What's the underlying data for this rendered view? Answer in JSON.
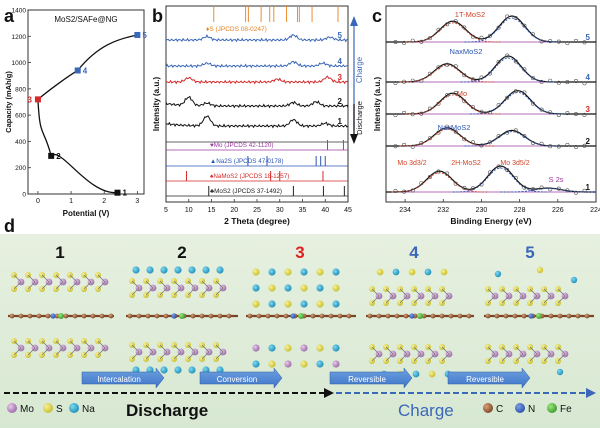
{
  "panels": {
    "a": {
      "letter": "a",
      "title": "MoS2/SAFe@NG",
      "xlabel": "Potential (V)",
      "ylabel": "Capacity (mAh/g)",
      "xticks": [
        "0",
        "1",
        "2",
        "3"
      ],
      "yticks": [
        "0",
        "200",
        "400",
        "600",
        "800",
        "1000",
        "1200",
        "1400"
      ],
      "point_labels": [
        "1",
        "2",
        "3",
        "4",
        "5"
      ]
    },
    "b": {
      "letter": "b",
      "xlabel": "2 Theta (degree)",
      "ylabel": "Intensity (a.u.)",
      "xticks": [
        "5",
        "10",
        "15",
        "20",
        "25",
        "30",
        "35",
        "40",
        "45"
      ],
      "curve_labels": [
        "5",
        "4",
        "3",
        "2",
        "1"
      ],
      "side_labels": {
        "charge": "Charge",
        "discharge": "Discharge"
      },
      "references": [
        {
          "label": "S (JPCDS 08-0247)",
          "color": "#e8821e",
          "marker": "♦"
        },
        {
          "label": "Mo (JPCDS 42-1120)",
          "color": "#9b3aa0",
          "marker": "♥"
        },
        {
          "label": "Na2S (JPCDS 47-0178)",
          "color": "#2b56b6",
          "marker": "▲"
        },
        {
          "label": "NaMoS2 (JPCDS 18-1257)",
          "color": "#d62a2a",
          "marker": "♠"
        },
        {
          "label": "MoS2 (JPCDS 37-1492)",
          "color": "#222222",
          "marker": "♣"
        }
      ]
    },
    "c": {
      "letter": "c",
      "xlabel": "Binding Energy (eV)",
      "ylabel": "Intensity (a.u.)",
      "xticks": [
        "234",
        "232",
        "230",
        "228",
        "226",
        "224"
      ],
      "curve_labels": [
        "5",
        "4",
        "3",
        "2",
        "1"
      ],
      "annotations": [
        "1T-MoS2",
        "NaxMoS2",
        "Mo",
        "NaxMoS2",
        "Mo 3d3/2",
        "2H-MoS2",
        "Mo 3d5/2",
        "S 2s"
      ]
    },
    "d": {
      "letter": "d",
      "stages": [
        {
          "label": "1",
          "color": "#111111"
        },
        {
          "label": "2",
          "color": "#111111"
        },
        {
          "label": "3",
          "color": "#e02020"
        },
        {
          "label": "4",
          "color": "#3b67b8"
        },
        {
          "label": "5",
          "color": "#3b67b8"
        }
      ],
      "steps": [
        "Intercalation",
        "Conversion",
        "Reversible",
        "Reversible"
      ],
      "legend_left": [
        "Mo",
        "S",
        "Na"
      ],
      "legend_right": [
        "C",
        "N",
        "Fe"
      ],
      "discharge_label": "Discharge",
      "charge_label": "Charge"
    }
  },
  "chart_data": [
    {
      "type": "line",
      "title": "MoS2/SAFe@NG",
      "xlabel": "Potential (V)",
      "ylabel": "Capacity (mAh/g)",
      "xlim": [
        -0.3,
        3.2
      ],
      "ylim": [
        0,
        1400
      ],
      "points": [
        {
          "label": "1",
          "x": 2.4,
          "y": 10
        },
        {
          "label": "2",
          "x": 0.4,
          "y": 290
        },
        {
          "label": "3",
          "x": 0.0,
          "y": 720
        },
        {
          "label": "4",
          "x": 1.2,
          "y": 940
        },
        {
          "label": "5",
          "x": 3.0,
          "y": 1210
        }
      ]
    },
    {
      "type": "line",
      "xlabel": "2 Theta (degree)",
      "ylabel": "Intensity (a.u.)",
      "xlim": [
        5,
        45
      ],
      "series": [
        {
          "name": "5",
          "color": "#3b67b8",
          "base": 5.0,
          "peaks": [
            [
              14.0,
              0.25
            ],
            [
              33.0,
              0.35
            ],
            [
              41.0,
              0.2
            ]
          ]
        },
        {
          "name": "4",
          "color": "#3b67b8",
          "base": 4.0,
          "peaks": [
            [
              14.0,
              0.2
            ],
            [
              33.0,
              0.3
            ],
            [
              39.5,
              0.2
            ]
          ]
        },
        {
          "name": "3",
          "color": "#d62a2a",
          "base": 3.0,
          "peaks": [
            [
              10.0,
              0.3
            ],
            [
              29.5,
              0.2
            ],
            [
              40.5,
              0.35
            ]
          ]
        },
        {
          "name": "2",
          "color": "#111111",
          "base": 2.0,
          "peaks": [
            [
              10.0,
              0.6
            ],
            [
              14.0,
              0.2
            ],
            [
              33.0,
              0.25
            ],
            [
              38.0,
              0.3
            ]
          ]
        },
        {
          "name": "1",
          "color": "#111111",
          "base": 1.0,
          "peaks": [
            [
              14.0,
              0.7
            ],
            [
              33.0,
              0.45
            ],
            [
              40.0,
              0.2
            ]
          ]
        }
      ]
    },
    {
      "type": "line",
      "xlabel": "Binding Energy (eV)",
      "ylabel": "Intensity (a.u.)",
      "xlim": [
        235,
        224
      ],
      "series": [
        {
          "name": "5",
          "color": "#3b67b8",
          "peaks": [
            [
              231.5,
              0.8
            ],
            [
              228.4,
              1.0
            ]
          ]
        },
        {
          "name": "4",
          "color": "#3b67b8",
          "peaks": [
            [
              231.8,
              0.7
            ],
            [
              228.6,
              1.0
            ]
          ]
        },
        {
          "name": "3",
          "color": "#d62a2a",
          "peaks": [
            [
              231.5,
              0.8
            ],
            [
              228.1,
              0.9
            ]
          ]
        },
        {
          "name": "2",
          "color": "#111111",
          "peaks": [
            [
              231.8,
              0.7
            ],
            [
              228.4,
              0.6
            ]
          ]
        },
        {
          "name": "1",
          "color": "#111111",
          "peaks": [
            [
              232.2,
              0.8
            ],
            [
              229.0,
              1.0
            ],
            [
              226.5,
              0.15
            ]
          ]
        }
      ]
    }
  ]
}
